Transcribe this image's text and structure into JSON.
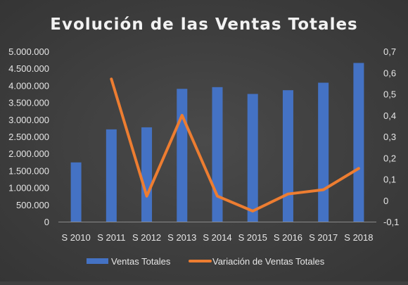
{
  "chart_data": {
    "type": "bar",
    "title": "Evolución de las Ventas Totales",
    "xlabel": "",
    "ylabel": "",
    "categories": [
      "S 2010",
      "S 2011",
      "S 2012",
      "S 2013",
      "S 2014",
      "S 2015",
      "S 2016",
      "S 2017",
      "S 2018"
    ],
    "series": [
      {
        "name": "Ventas Totales",
        "type": "bar",
        "axis": "left",
        "color": "#4472c4",
        "values": [
          1740000,
          2710000,
          2770000,
          3900000,
          3950000,
          3750000,
          3860000,
          4080000,
          4660000
        ]
      },
      {
        "name": "Variación de Ventas Totales",
        "type": "line",
        "axis": "right",
        "color": "#ed7d31",
        "values": [
          null,
          0.57,
          0.02,
          0.4,
          0.02,
          -0.05,
          0.03,
          0.05,
          0.15
        ]
      }
    ],
    "ylim": [
      0,
      5000000
    ],
    "y2lim": [
      -0.1,
      0.7
    ],
    "yticks": [
      "0",
      "500.000",
      "1.000.000",
      "1.500.000",
      "2.000.000",
      "2.500.000",
      "3.000.000",
      "3.500.000",
      "4.000.000",
      "4.500.000",
      "5.000.000"
    ],
    "y2ticks": [
      "-0,1",
      "0",
      "0,1",
      "0,2",
      "0,3",
      "0,4",
      "0,5",
      "0,6",
      "0,7"
    ],
    "grid": false,
    "legend_position": "bottom",
    "background": "#3f3f3f"
  }
}
